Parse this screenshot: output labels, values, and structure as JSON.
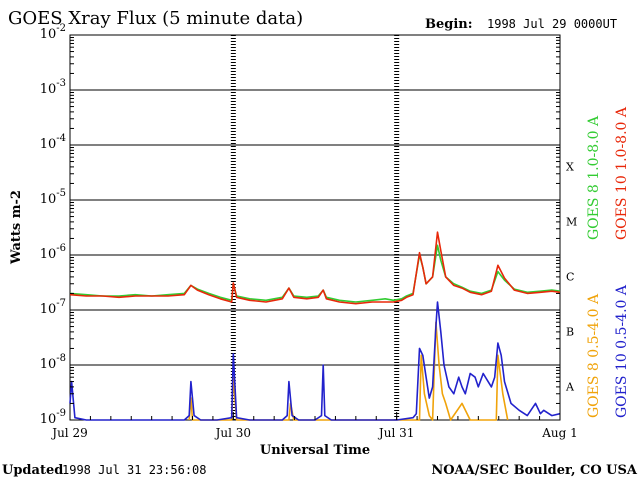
{
  "header": {
    "title": "GOES Xray Flux (5 minute data)",
    "begin_label": "Begin:",
    "begin_value": "1998 Jul 29 0000UT"
  },
  "footer": {
    "updated_label": "Updated",
    "updated_value": "1998 Jul 31 23:56:08",
    "credit": "NOAA/SEC Boulder, CO USA"
  },
  "chart_data": {
    "type": "line",
    "title": "GOES Xray Flux (5 minute data)",
    "xlabel": "Universal Time",
    "ylabel": "Watts m-2",
    "yscale": "log",
    "xlim": [
      0,
      3
    ],
    "ylim_exponent": [
      -9,
      -2
    ],
    "x_ticks": [
      {
        "day": 0,
        "label": "Jul 29"
      },
      {
        "day": 1,
        "label": "Jul 30"
      },
      {
        "day": 2,
        "label": "Jul 31"
      },
      {
        "day": 3,
        "label": "Aug 1"
      }
    ],
    "y_ticks": [
      {
        "exp": -2,
        "base": "10",
        "sup": "-2"
      },
      {
        "exp": -3,
        "base": "10",
        "sup": "-3"
      },
      {
        "exp": -4,
        "base": "10",
        "sup": "-4"
      },
      {
        "exp": -5,
        "base": "10",
        "sup": "-5"
      },
      {
        "exp": -6,
        "base": "10",
        "sup": "-6"
      },
      {
        "exp": -7,
        "base": "10",
        "sup": "-7"
      },
      {
        "exp": -8,
        "base": "10",
        "sup": "-8"
      },
      {
        "exp": -9,
        "base": "10",
        "sup": "-9"
      }
    ],
    "flare_classes": [
      {
        "label": "X",
        "exp": -4
      },
      {
        "label": "M",
        "exp": -5
      },
      {
        "label": "C",
        "exp": -6
      },
      {
        "label": "B",
        "exp": -7
      },
      {
        "label": "A",
        "exp": -8
      }
    ],
    "grid": "horizontal decades",
    "legend_placement": "right-vertical",
    "series": [
      {
        "name": "GOES 8 1.0-8.0 A",
        "color": "#33cc33",
        "points": [
          [
            0.0,
            2e-07
          ],
          [
            0.1,
            1.9e-07
          ],
          [
            0.2,
            1.8e-07
          ],
          [
            0.3,
            1.8e-07
          ],
          [
            0.4,
            1.9e-07
          ],
          [
            0.5,
            1.8e-07
          ],
          [
            0.6,
            1.9e-07
          ],
          [
            0.7,
            2e-07
          ],
          [
            0.74,
            2.8e-07
          ],
          [
            0.78,
            2.4e-07
          ],
          [
            0.85,
            2e-07
          ],
          [
            0.92,
            1.7e-07
          ],
          [
            0.99,
            1.5e-07
          ],
          [
            1.0,
            3e-07
          ],
          [
            1.02,
            1.8e-07
          ],
          [
            1.1,
            1.6e-07
          ],
          [
            1.2,
            1.5e-07
          ],
          [
            1.3,
            1.7e-07
          ],
          [
            1.34,
            2.5e-07
          ],
          [
            1.37,
            1.8e-07
          ],
          [
            1.45,
            1.7e-07
          ],
          [
            1.52,
            1.8e-07
          ],
          [
            1.55,
            2.3e-07
          ],
          [
            1.57,
            1.7e-07
          ],
          [
            1.65,
            1.5e-07
          ],
          [
            1.75,
            1.4e-07
          ],
          [
            1.85,
            1.5e-07
          ],
          [
            1.93,
            1.6e-07
          ],
          [
            1.98,
            1.5e-07
          ],
          [
            2.03,
            1.6e-07
          ],
          [
            2.06,
            1.8e-07
          ],
          [
            2.1,
            2e-07
          ],
          [
            2.14,
            1e-06
          ],
          [
            2.16,
            6e-07
          ],
          [
            2.18,
            3e-07
          ],
          [
            2.22,
            4e-07
          ],
          [
            2.25,
            1.5e-06
          ],
          [
            2.27,
            8e-07
          ],
          [
            2.3,
            4e-07
          ],
          [
            2.35,
            3e-07
          ],
          [
            2.4,
            2.6e-07
          ],
          [
            2.45,
            2.2e-07
          ],
          [
            2.52,
            2e-07
          ],
          [
            2.58,
            2.3e-07
          ],
          [
            2.62,
            5e-07
          ],
          [
            2.66,
            3.5e-07
          ],
          [
            2.72,
            2.4e-07
          ],
          [
            2.8,
            2.1e-07
          ],
          [
            2.88,
            2.2e-07
          ],
          [
            2.95,
            2.3e-07
          ],
          [
            3.0,
            2.2e-07
          ]
        ]
      },
      {
        "name": "GOES 10 1.0-8.0 A",
        "color": "#e8280a",
        "points": [
          [
            0.0,
            1.9e-07
          ],
          [
            0.1,
            1.8e-07
          ],
          [
            0.2,
            1.8e-07
          ],
          [
            0.3,
            1.7e-07
          ],
          [
            0.4,
            1.8e-07
          ],
          [
            0.5,
            1.8e-07
          ],
          [
            0.6,
            1.8e-07
          ],
          [
            0.7,
            1.9e-07
          ],
          [
            0.74,
            2.8e-07
          ],
          [
            0.78,
            2.3e-07
          ],
          [
            0.85,
            1.9e-07
          ],
          [
            0.92,
            1.6e-07
          ],
          [
            0.99,
            1.4e-07
          ],
          [
            1.0,
            3.1e-07
          ],
          [
            1.02,
            1.7e-07
          ],
          [
            1.1,
            1.5e-07
          ],
          [
            1.2,
            1.4e-07
          ],
          [
            1.3,
            1.6e-07
          ],
          [
            1.34,
            2.5e-07
          ],
          [
            1.37,
            1.7e-07
          ],
          [
            1.45,
            1.6e-07
          ],
          [
            1.52,
            1.7e-07
          ],
          [
            1.55,
            2.3e-07
          ],
          [
            1.57,
            1.6e-07
          ],
          [
            1.65,
            1.4e-07
          ],
          [
            1.75,
            1.3e-07
          ],
          [
            1.85,
            1.4e-07
          ],
          [
            1.93,
            1.4e-07
          ],
          [
            1.98,
            1.4e-07
          ],
          [
            2.03,
            1.5e-07
          ],
          [
            2.06,
            1.7e-07
          ],
          [
            2.1,
            1.9e-07
          ],
          [
            2.14,
            1.1e-06
          ],
          [
            2.16,
            6e-07
          ],
          [
            2.18,
            3e-07
          ],
          [
            2.22,
            4e-07
          ],
          [
            2.25,
            2.6e-06
          ],
          [
            2.27,
            1.2e-06
          ],
          [
            2.3,
            4e-07
          ],
          [
            2.35,
            2.8e-07
          ],
          [
            2.4,
            2.5e-07
          ],
          [
            2.45,
            2.1e-07
          ],
          [
            2.52,
            1.9e-07
          ],
          [
            2.58,
            2.2e-07
          ],
          [
            2.62,
            6.5e-07
          ],
          [
            2.66,
            3.8e-07
          ],
          [
            2.72,
            2.3e-07
          ],
          [
            2.8,
            2e-07
          ],
          [
            2.88,
            2.1e-07
          ],
          [
            2.95,
            2.2e-07
          ],
          [
            3.0,
            2.1e-07
          ]
        ]
      },
      {
        "name": "GOES 8 0.5-4.0 A",
        "color": "#f0a30a",
        "points": [
          [
            0.73,
            1e-09
          ],
          [
            0.74,
            2.5e-09
          ],
          [
            0.75,
            1e-09
          ],
          [
            0.99,
            1e-09
          ],
          [
            1.0,
            6e-09
          ],
          [
            1.02,
            1e-09
          ],
          [
            1.34,
            1e-09
          ],
          [
            1.35,
            2e-09
          ],
          [
            1.37,
            1e-09
          ],
          [
            2.14,
            1e-09
          ],
          [
            2.15,
            1.5e-08
          ],
          [
            2.17,
            3e-09
          ],
          [
            2.2,
            1.2e-09
          ],
          [
            2.22,
            1e-09
          ],
          [
            2.24,
            6e-08
          ],
          [
            2.26,
            1e-08
          ],
          [
            2.28,
            3e-09
          ],
          [
            2.3,
            2e-09
          ],
          [
            2.33,
            1e-09
          ],
          [
            2.4,
            2e-09
          ],
          [
            2.45,
            1e-09
          ],
          [
            2.5,
            1e-09
          ],
          [
            2.61,
            1e-09
          ],
          [
            2.62,
            1.5e-08
          ],
          [
            2.65,
            3e-09
          ],
          [
            2.68,
            1e-09
          ]
        ]
      },
      {
        "name": "GOES 10 0.5-4.0 A",
        "color": "#2222cc",
        "points": [
          [
            0.0,
            2e-09
          ],
          [
            0.01,
            5e-09
          ],
          [
            0.03,
            1.1e-09
          ],
          [
            0.1,
            1e-09
          ],
          [
            0.2,
            1e-09
          ],
          [
            0.3,
            1e-09
          ],
          [
            0.4,
            1e-09
          ],
          [
            0.5,
            1e-09
          ],
          [
            0.6,
            1e-09
          ],
          [
            0.7,
            1e-09
          ],
          [
            0.73,
            1.2e-09
          ],
          [
            0.74,
            5e-09
          ],
          [
            0.76,
            1.2e-09
          ],
          [
            0.8,
            1e-09
          ],
          [
            0.9,
            1e-09
          ],
          [
            0.99,
            1.1e-09
          ],
          [
            1.0,
            1.6e-08
          ],
          [
            1.02,
            1.1e-09
          ],
          [
            1.1,
            1e-09
          ],
          [
            1.2,
            1e-09
          ],
          [
            1.3,
            1e-09
          ],
          [
            1.33,
            1.2e-09
          ],
          [
            1.34,
            5e-09
          ],
          [
            1.36,
            1.2e-09
          ],
          [
            1.4,
            1e-09
          ],
          [
            1.5,
            1e-09
          ],
          [
            1.54,
            1.2e-09
          ],
          [
            1.55,
            1e-08
          ],
          [
            1.56,
            1.2e-09
          ],
          [
            1.6,
            1e-09
          ],
          [
            1.7,
            1e-09
          ],
          [
            1.8,
            1e-09
          ],
          [
            1.9,
            1e-09
          ],
          [
            2.0,
            1e-09
          ],
          [
            2.1,
            1.1e-09
          ],
          [
            2.12,
            1.3e-09
          ],
          [
            2.14,
            2e-08
          ],
          [
            2.16,
            1.5e-08
          ],
          [
            2.18,
            6e-09
          ],
          [
            2.2,
            2.5e-09
          ],
          [
            2.22,
            4e-09
          ],
          [
            2.24,
            5e-08
          ],
          [
            2.25,
            1.4e-07
          ],
          [
            2.27,
            4e-08
          ],
          [
            2.29,
            1e-08
          ],
          [
            2.32,
            4e-09
          ],
          [
            2.35,
            3e-09
          ],
          [
            2.38,
            6e-09
          ],
          [
            2.4,
            4e-09
          ],
          [
            2.42,
            3e-09
          ],
          [
            2.45,
            7e-09
          ],
          [
            2.48,
            6e-09
          ],
          [
            2.5,
            4e-09
          ],
          [
            2.53,
            7e-09
          ],
          [
            2.56,
            5e-09
          ],
          [
            2.58,
            4e-09
          ],
          [
            2.6,
            6e-09
          ],
          [
            2.62,
            2.5e-08
          ],
          [
            2.64,
            1.5e-08
          ],
          [
            2.66,
            5e-09
          ],
          [
            2.7,
            2e-09
          ],
          [
            2.75,
            1.5e-09
          ],
          [
            2.8,
            1.2e-09
          ],
          [
            2.85,
            2e-09
          ],
          [
            2.88,
            1.3e-09
          ],
          [
            2.9,
            1.5e-09
          ],
          [
            2.95,
            1.2e-09
          ],
          [
            3.0,
            1.3e-09
          ]
        ]
      }
    ]
  }
}
